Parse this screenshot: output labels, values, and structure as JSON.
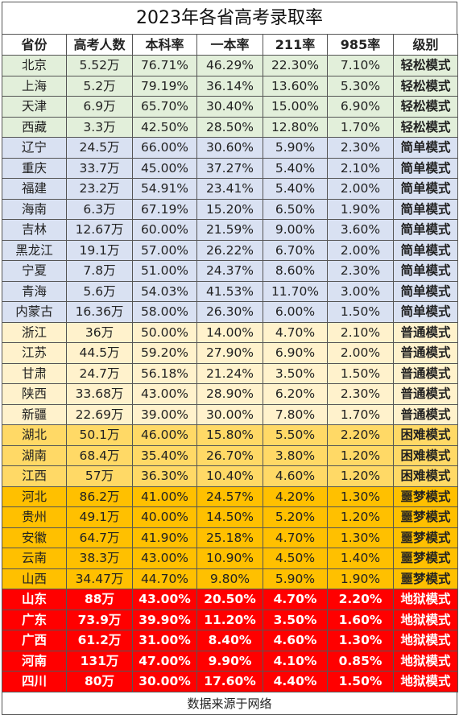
{
  "title": "2023年各省高考录取率",
  "headers": [
    "省份",
    "高考人数",
    "本科率",
    "一本率",
    "211率",
    "985率",
    "级别"
  ],
  "colors": {
    "轻松模式": "#e2efda",
    "简单模式": "#d9e1f2",
    "普通模式": "#fff2cc",
    "困难模式": "#ffd966",
    "噩梦模式": "#ffc000",
    "地狱模式": "#ff0000"
  },
  "rows": [
    {
      "province": "北京",
      "examinees": "5.52万",
      "bachelor": "76.71%",
      "tier1": "46.29%",
      "r211": "22.30%",
      "r985": "7.10%",
      "level": "轻松模式"
    },
    {
      "province": "上海",
      "examinees": "5.2万",
      "bachelor": "79.19%",
      "tier1": "36.14%",
      "r211": "13.60%",
      "r985": "5.30%",
      "level": "轻松模式"
    },
    {
      "province": "天津",
      "examinees": "6.9万",
      "bachelor": "65.70%",
      "tier1": "30.40%",
      "r211": "15.00%",
      "r985": "6.90%",
      "level": "轻松模式"
    },
    {
      "province": "西藏",
      "examinees": "3.3万",
      "bachelor": "42.50%",
      "tier1": "28.50%",
      "r211": "12.80%",
      "r985": "1.70%",
      "level": "轻松模式"
    },
    {
      "province": "辽宁",
      "examinees": "24.5万",
      "bachelor": "66.00%",
      "tier1": "30.60%",
      "r211": "5.90%",
      "r985": "2.30%",
      "level": "简单模式"
    },
    {
      "province": "重庆",
      "examinees": "33.7万",
      "bachelor": "45.00%",
      "tier1": "37.27%",
      "r211": "5.40%",
      "r985": "2.10%",
      "level": "简单模式"
    },
    {
      "province": "福建",
      "examinees": "23.2万",
      "bachelor": "54.91%",
      "tier1": "23.41%",
      "r211": "5.40%",
      "r985": "2.00%",
      "level": "简单模式"
    },
    {
      "province": "海南",
      "examinees": "6.3万",
      "bachelor": "67.19%",
      "tier1": "15.20%",
      "r211": "6.50%",
      "r985": "1.90%",
      "level": "简单模式"
    },
    {
      "province": "吉林",
      "examinees": "12.67万",
      "bachelor": "60.00%",
      "tier1": "21.59%",
      "r211": "9.00%",
      "r985": "3.60%",
      "level": "简单模式"
    },
    {
      "province": "黑龙江",
      "examinees": "19.1万",
      "bachelor": "57.00%",
      "tier1": "26.22%",
      "r211": "6.70%",
      "r985": "2.00%",
      "level": "简单模式"
    },
    {
      "province": "宁夏",
      "examinees": "7.8万",
      "bachelor": "51.00%",
      "tier1": "24.37%",
      "r211": "8.60%",
      "r985": "2.30%",
      "level": "简单模式"
    },
    {
      "province": "青海",
      "examinees": "5.6万",
      "bachelor": "54.03%",
      "tier1": "41.53%",
      "r211": "11.70%",
      "r985": "3.00%",
      "level": "简单模式"
    },
    {
      "province": "内蒙古",
      "examinees": "16.36万",
      "bachelor": "58.00%",
      "tier1": "26.30%",
      "r211": "6.00%",
      "r985": "1.50%",
      "level": "简单模式"
    },
    {
      "province": "浙江",
      "examinees": "36万",
      "bachelor": "50.00%",
      "tier1": "14.00%",
      "r211": "4.70%",
      "r985": "2.10%",
      "level": "普通模式"
    },
    {
      "province": "江苏",
      "examinees": "44.5万",
      "bachelor": "59.20%",
      "tier1": "27.90%",
      "r211": "6.90%",
      "r985": "2.00%",
      "level": "普通模式"
    },
    {
      "province": "甘肃",
      "examinees": "24.7万",
      "bachelor": "56.18%",
      "tier1": "21.24%",
      "r211": "3.50%",
      "r985": "1.50%",
      "level": "普通模式"
    },
    {
      "province": "陕西",
      "examinees": "33.68万",
      "bachelor": "43.00%",
      "tier1": "28.90%",
      "r211": "6.20%",
      "r985": "2.30%",
      "level": "普通模式"
    },
    {
      "province": "新疆",
      "examinees": "22.69万",
      "bachelor": "39.00%",
      "tier1": "30.00%",
      "r211": "7.80%",
      "r985": "1.70%",
      "level": "普通模式"
    },
    {
      "province": "湖北",
      "examinees": "50.1万",
      "bachelor": "46.00%",
      "tier1": "15.80%",
      "r211": "5.50%",
      "r985": "2.20%",
      "level": "困难模式"
    },
    {
      "province": "湖南",
      "examinees": "68.4万",
      "bachelor": "35.40%",
      "tier1": "26.70%",
      "r211": "3.80%",
      "r985": "1.20%",
      "level": "困难模式"
    },
    {
      "province": "江西",
      "examinees": "57万",
      "bachelor": "36.30%",
      "tier1": "10.40%",
      "r211": "4.60%",
      "r985": "1.20%",
      "level": "困难模式"
    },
    {
      "province": "河北",
      "examinees": "86.2万",
      "bachelor": "41.00%",
      "tier1": "24.57%",
      "r211": "4.20%",
      "r985": "1.30%",
      "level": "噩梦模式"
    },
    {
      "province": "贵州",
      "examinees": "49.1万",
      "bachelor": "40.00%",
      "tier1": "14.50%",
      "r211": "5.20%",
      "r985": "1.20%",
      "level": "噩梦模式"
    },
    {
      "province": "安徽",
      "examinees": "64.7万",
      "bachelor": "41.90%",
      "tier1": "25.18%",
      "r211": "4.70%",
      "r985": "1.30%",
      "level": "噩梦模式"
    },
    {
      "province": "云南",
      "examinees": "38.3万",
      "bachelor": "43.00%",
      "tier1": "10.90%",
      "r211": "4.50%",
      "r985": "1.40%",
      "level": "噩梦模式"
    },
    {
      "province": "山西",
      "examinees": "34.47万",
      "bachelor": "44.70%",
      "tier1": "9.80%",
      "r211": "5.90%",
      "r985": "1.90%",
      "level": "噩梦模式"
    },
    {
      "province": "山东",
      "examinees": "88万",
      "bachelor": "43.00%",
      "tier1": "20.50%",
      "r211": "4.70%",
      "r985": "2.20%",
      "level": "地狱模式"
    },
    {
      "province": "广东",
      "examinees": "73.9万",
      "bachelor": "39.90%",
      "tier1": "11.20%",
      "r211": "3.50%",
      "r985": "1.60%",
      "level": "地狱模式"
    },
    {
      "province": "广西",
      "examinees": "61.2万",
      "bachelor": "31.00%",
      "tier1": "8.40%",
      "r211": "4.60%",
      "r985": "1.30%",
      "level": "地狱模式"
    },
    {
      "province": "河南",
      "examinees": "131万",
      "bachelor": "47.00%",
      "tier1": "9.90%",
      "r211": "4.10%",
      "r985": "0.85%",
      "level": "地狱模式"
    },
    {
      "province": "四川",
      "examinees": "80万",
      "bachelor": "30.00%",
      "tier1": "17.60%",
      "r211": "4.40%",
      "r985": "1.50%",
      "level": "地狱模式"
    }
  ],
  "footer": "数据来源于网络"
}
